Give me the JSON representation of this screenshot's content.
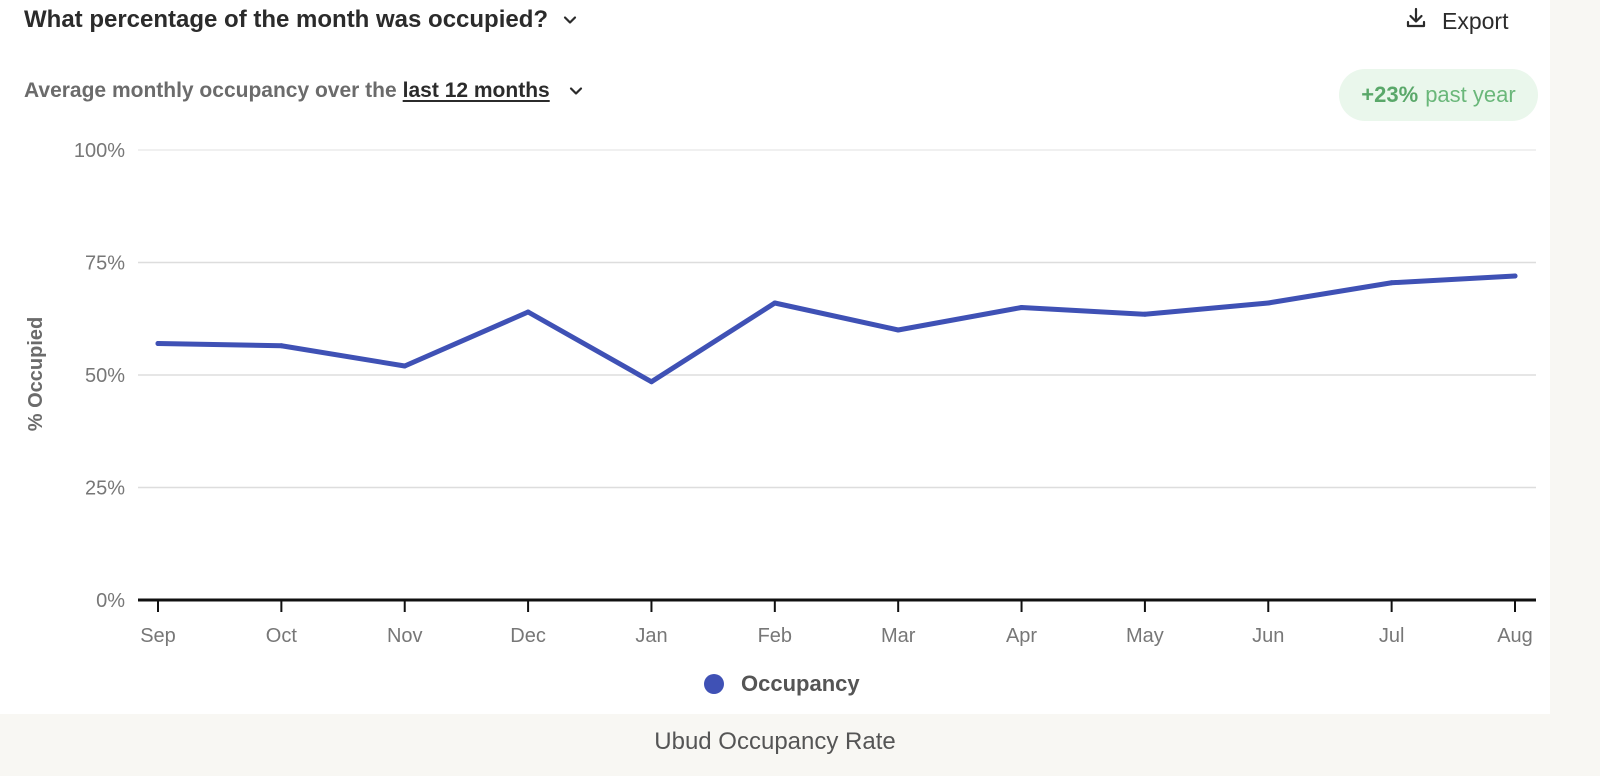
{
  "header": {
    "title": "What percentage of the month was occupied?",
    "export_label": "Export"
  },
  "subheader": {
    "prefix": "Average monthly occupancy over the",
    "range_label": "last 12 months"
  },
  "badge": {
    "value": "+23%",
    "label": "past year"
  },
  "colors": {
    "series": "#3f51b5",
    "badge_bg": "#eaf7ec",
    "badge_text": "#5aa86a"
  },
  "icons": {
    "title_toggle": "chevron-down-icon",
    "export": "download-icon",
    "range_toggle": "chevron-down-icon"
  },
  "chart_data": {
    "type": "line",
    "ylabel": "% Occupied",
    "ylim": [
      0,
      100
    ],
    "yticks": [
      0,
      25,
      50,
      75,
      100
    ],
    "ytick_labels": [
      "0%",
      "25%",
      "50%",
      "75%",
      "100%"
    ],
    "categories": [
      "Sep",
      "Oct",
      "Nov",
      "Dec",
      "Jan",
      "Feb",
      "Mar",
      "Apr",
      "May",
      "Jun",
      "Jul",
      "Aug"
    ],
    "series": [
      {
        "name": "Occupancy",
        "values": [
          57,
          56.5,
          52,
          64,
          48.5,
          66,
          60,
          65,
          63.5,
          66,
          70.5,
          72
        ]
      }
    ],
    "grid": true,
    "legend_position": "bottom"
  },
  "caption": "Ubud Occupancy Rate"
}
